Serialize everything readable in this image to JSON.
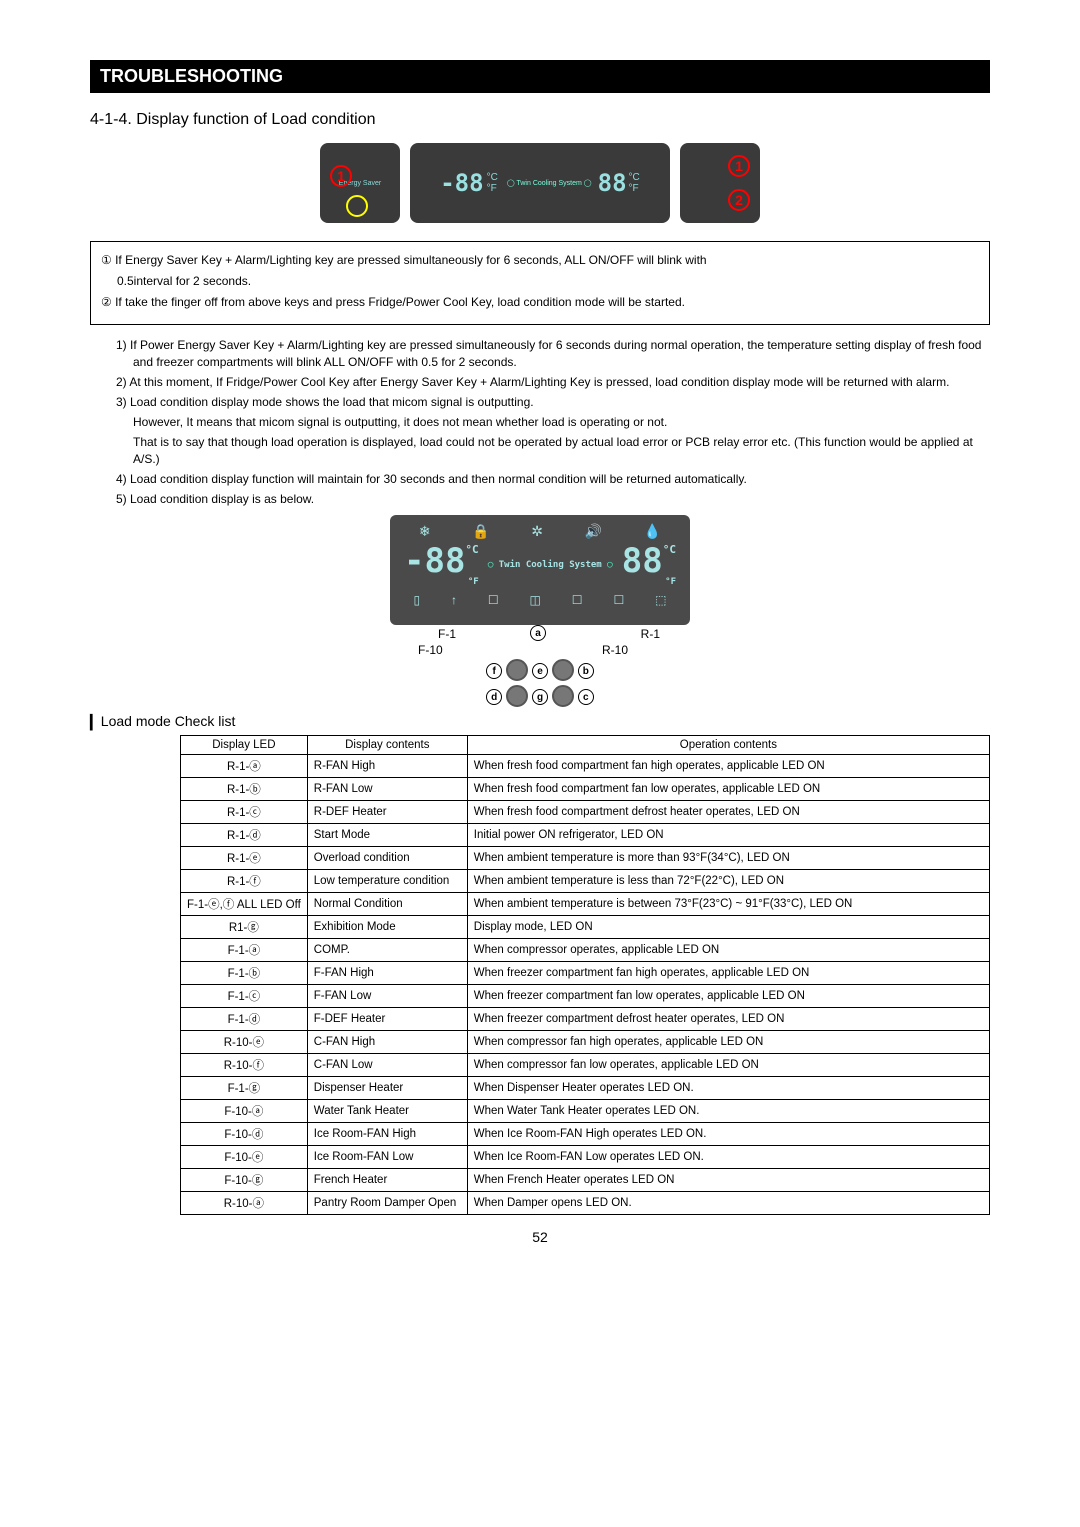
{
  "header": {
    "title": "TROUBLESHOOTING"
  },
  "section": {
    "title": "4-1-4. Display function of Load condition"
  },
  "circledNums": {
    "one": "①",
    "two": "②"
  },
  "notebox": {
    "line1a": " If Energy Saver Key + Alarm/Lighting key are pressed simultaneously for 6 seconds, ALL ON/OFF will blink with",
    "line1b": "0.5interval for 2 seconds.",
    "line2": " If take the finger off from above keys and press Fridge/Power Cool Key, load condition mode will be started."
  },
  "steps": {
    "s1": "1) If Power Energy Saver Key + Alarm/Lighting key are pressed simultaneously for 6 seconds during normal operation, the temperature setting display of fresh food and freezer compartments will blink ALL ON/OFF with 0.5 for 2 seconds.",
    "s2": "2) At this moment, If Fridge/Power Cool Key after Energy Saver Key + Alarm/Lighting Key is pressed, load condition display mode will be returned with alarm.",
    "s3a": "3) Load condition display mode shows the load that micom signal is outputting.",
    "s3b": "However, It means that micom signal is outputting, it does not mean whether load is operating or not.",
    "s3c": "That is to say that though load operation is displayed, load could not be operated by actual load error or PCB relay error etc. (This function would be applied at A/S.)",
    "s4": "4) Load condition display function will maintain for 30 seconds and then normal condition will be returned automatically.",
    "s5": "5) Load condition display is as below."
  },
  "lcd": {
    "segLeft": "-88",
    "segRight": "88",
    "unitLeft": "°C",
    "unitRight": "°C",
    "unitLeftF": "°F",
    "unitRightF": "°F",
    "mid": "Twin Cooling System"
  },
  "arrows": {
    "f1": "F-1",
    "f10": "F-10",
    "r1": "R-1",
    "r10": "R-10",
    "a": "ⓐ",
    "b": "ⓑ",
    "c": "ⓒ",
    "d": "ⓓ",
    "e": "ⓔ",
    "f": "ⓕ",
    "g": "ⓖ"
  },
  "checkTitle": "▎Load mode Check list",
  "table": {
    "headers": {
      "c1": "Display LED",
      "c2": "Display contents",
      "c3": "Operation contents"
    },
    "rows": [
      {
        "led": "R-1-ⓐ",
        "disp": "R-FAN High",
        "op": "When fresh food compartment fan high operates, applicable LED ON"
      },
      {
        "led": "R-1-ⓑ",
        "disp": "R-FAN Low",
        "op": "When fresh food compartment fan low operates, applicable LED ON"
      },
      {
        "led": "R-1-ⓒ",
        "disp": "R-DEF Heater",
        "op": "When fresh food compartment defrost heater operates, LED ON"
      },
      {
        "led": "R-1-ⓓ",
        "disp": "Start Mode",
        "op": "Initial power ON refrigerator, LED ON"
      },
      {
        "led": "R-1-ⓔ",
        "disp": "Overload condition",
        "op": "When ambient temperature is more than 93°F(34°C), LED ON"
      },
      {
        "led": "R-1-ⓕ",
        "disp": "Low temperature condition",
        "op": "When ambient temperature is less than 72°F(22°C), LED ON"
      },
      {
        "led": "F-1-ⓔ,ⓕ ALL LED Off",
        "disp": "Normal Condition",
        "op": "When ambient temperature is between 73°F(23°C) ~ 91°F(33°C), LED ON"
      },
      {
        "led": "R1-ⓖ",
        "disp": "Exhibition Mode",
        "op": "Display mode, LED ON"
      },
      {
        "led": "F-1-ⓐ",
        "disp": "COMP.",
        "op": "When compressor operates, applicable LED ON"
      },
      {
        "led": "F-1-ⓑ",
        "disp": "F-FAN High",
        "op": "When freezer compartment fan high operates, applicable LED ON"
      },
      {
        "led": "F-1-ⓒ",
        "disp": "F-FAN Low",
        "op": "When freezer compartment fan low operates, applicable LED ON"
      },
      {
        "led": "F-1-ⓓ",
        "disp": "F-DEF Heater",
        "op": "When freezer compartment defrost heater operates, LED ON"
      },
      {
        "led": "R-10-ⓔ",
        "disp": "C-FAN High",
        "op": "When compressor fan high operates, applicable LED ON"
      },
      {
        "led": "R-10-ⓕ",
        "disp": "C-FAN Low",
        "op": "When compressor fan low operates, applicable LED ON"
      },
      {
        "led": "F-1-ⓖ",
        "disp": "Dispenser Heater",
        "op": "When Dispenser Heater operates LED ON."
      },
      {
        "led": "F-10-ⓐ",
        "disp": "Water Tank Heater",
        "op": "When Water Tank Heater operates LED ON."
      },
      {
        "led": "F-10-ⓓ",
        "disp": "Ice Room-FAN High",
        "op": "When Ice Room-FAN High operates LED ON."
      },
      {
        "led": "F-10-ⓔ",
        "disp": "Ice Room-FAN Low",
        "op": "When Ice Room-FAN Low operates LED ON."
      },
      {
        "led": "F-10-ⓖ",
        "disp": "French Heater",
        "op": "When French Heater operates LED ON"
      },
      {
        "led": "R-10-ⓐ",
        "disp": "Pantry Room Damper Open",
        "op": "When Damper opens LED ON."
      }
    ]
  },
  "pageNum": "52",
  "colors": {
    "titleBg": "#000000",
    "titleFg": "#ffffff",
    "panelBg": "#3a3a3a",
    "lcdBg": "#4a4a4a",
    "lcdFg": "#a8e4e4",
    "circRed": "#ff0000",
    "border": "#000000"
  }
}
